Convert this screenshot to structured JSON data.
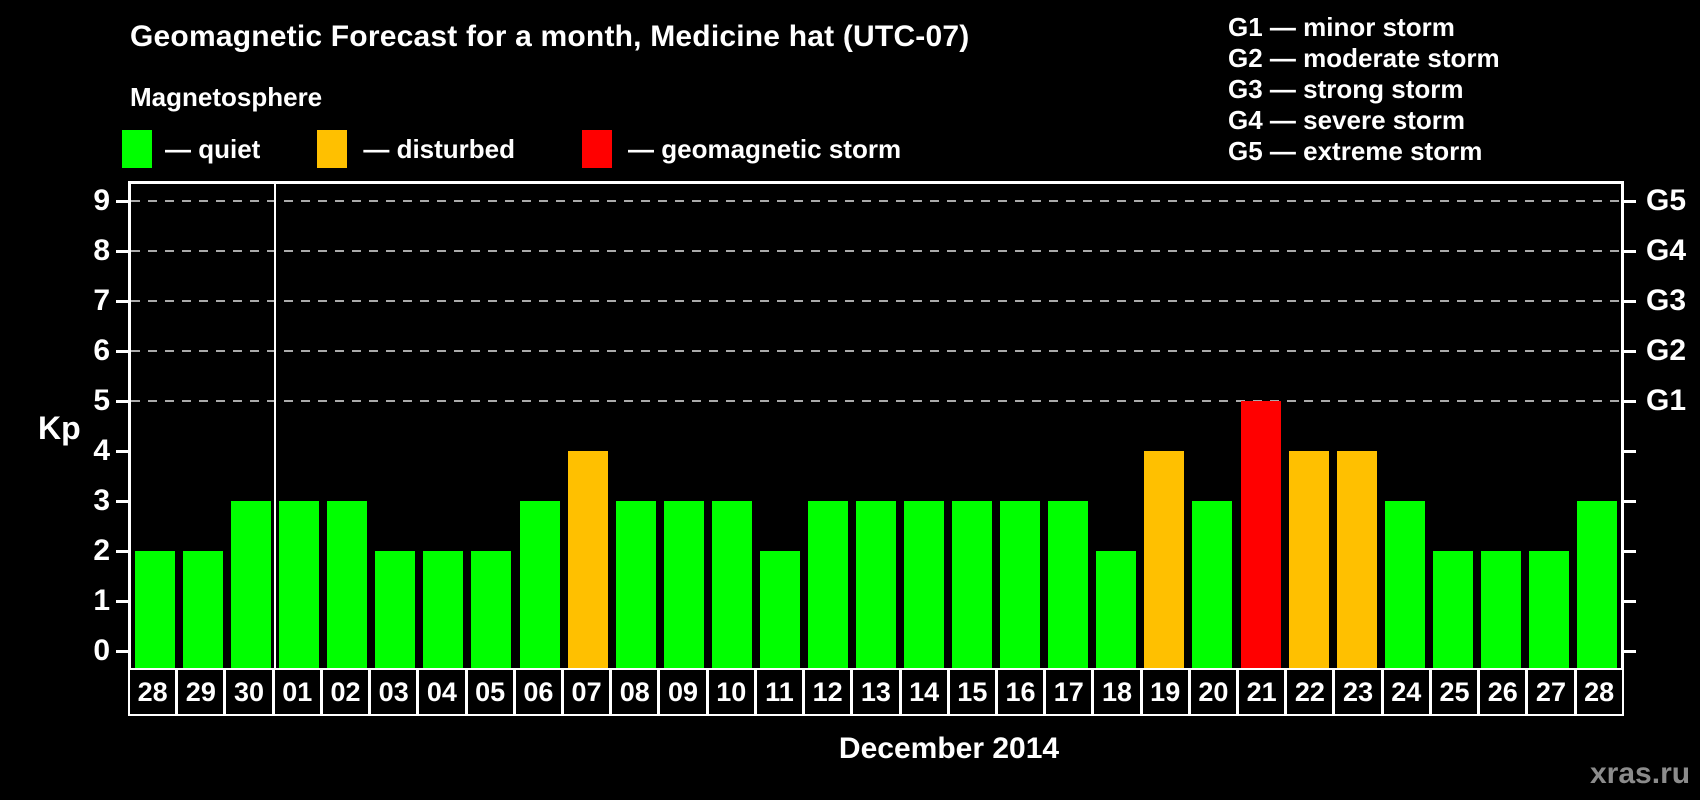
{
  "header": {
    "title": "Geomagnetic Forecast for a month, Medicine hat (UTC-07)",
    "subtitle": "Magnetosphere",
    "legend": [
      {
        "status": "quiet",
        "label": "— quiet",
        "color": "#00ff00"
      },
      {
        "status": "disturbed",
        "label": "— disturbed",
        "color": "#ffc000"
      },
      {
        "status": "storm",
        "label": "— geomagnetic storm",
        "color": "#ff0000"
      }
    ],
    "g_scale": [
      "G1 — minor storm",
      "G2 — moderate storm",
      "G3 — strong storm",
      "G4 — severe storm",
      "G5 — extreme storm"
    ]
  },
  "chart_data": {
    "type": "bar",
    "title": "Geomagnetic Forecast for a month, Medicine hat (UTC-07)",
    "ylabel": "Kp",
    "xlabel": "December 2014",
    "categories": [
      "28",
      "29",
      "30",
      "01",
      "02",
      "03",
      "04",
      "05",
      "06",
      "07",
      "08",
      "09",
      "10",
      "11",
      "12",
      "13",
      "14",
      "15",
      "16",
      "17",
      "18",
      "19",
      "20",
      "21",
      "22",
      "23",
      "24",
      "25",
      "26",
      "27",
      "28"
    ],
    "values": [
      2,
      2,
      3,
      3,
      3,
      2,
      2,
      2,
      3,
      4,
      3,
      3,
      3,
      2,
      3,
      3,
      3,
      3,
      3,
      3,
      2,
      4,
      3,
      5,
      4,
      4,
      3,
      2,
      2,
      2,
      3
    ],
    "statuses": [
      "quiet",
      "quiet",
      "quiet",
      "quiet",
      "quiet",
      "quiet",
      "quiet",
      "quiet",
      "quiet",
      "disturbed",
      "quiet",
      "quiet",
      "quiet",
      "quiet",
      "quiet",
      "quiet",
      "quiet",
      "quiet",
      "quiet",
      "quiet",
      "quiet",
      "disturbed",
      "quiet",
      "storm",
      "disturbed",
      "disturbed",
      "quiet",
      "quiet",
      "quiet",
      "quiet",
      "quiet"
    ],
    "ylim": [
      -0.34,
      9.34
    ],
    "yticks": [
      0,
      1,
      2,
      3,
      4,
      5,
      6,
      7,
      8,
      9
    ],
    "gridlines": [
      5,
      6,
      7,
      8,
      9
    ],
    "grid_style": "dashed",
    "right_axis_labels": [
      {
        "value": 5,
        "label": "G1"
      },
      {
        "value": 6,
        "label": "G2"
      },
      {
        "value": 7,
        "label": "G3"
      },
      {
        "value": 8,
        "label": "G4"
      },
      {
        "value": 9,
        "label": "G5"
      }
    ],
    "separator_after_index": 2,
    "legend_position": "top-left"
  },
  "footer": {
    "month_label": "December 2014",
    "watermark": "xras.ru"
  }
}
